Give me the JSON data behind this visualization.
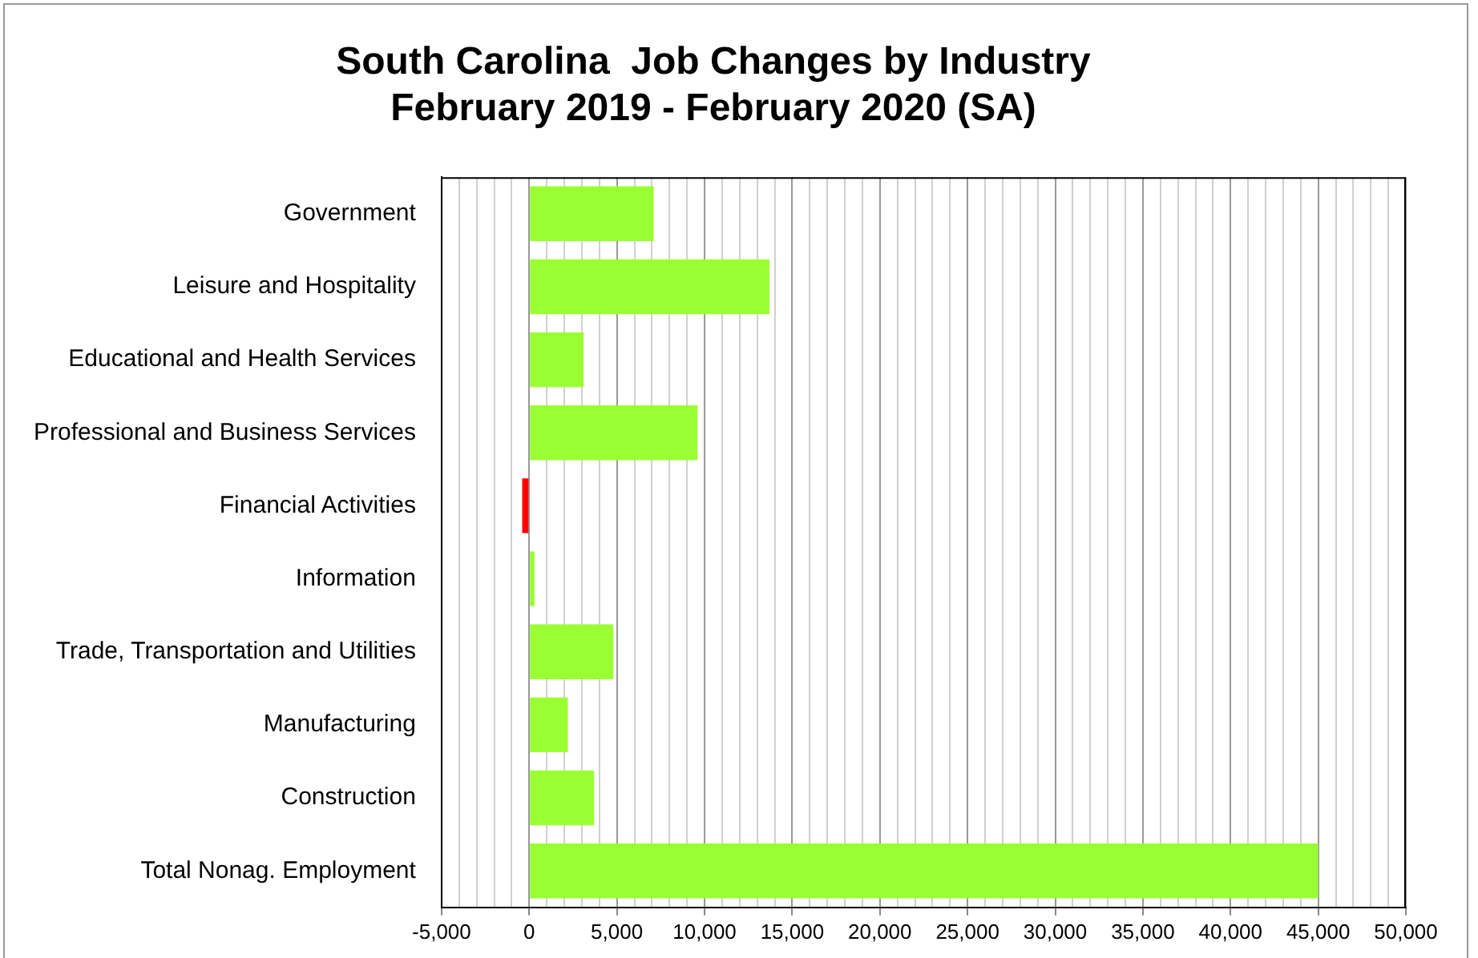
{
  "chart_data": {
    "type": "bar",
    "orientation": "horizontal",
    "title": "South Carolina  Job Changes by Industry\nFebruary 2019 - February 2020 (SA)",
    "categories": [
      "Government",
      "Leisure and Hospitality",
      "Educational and Health Services",
      "Professional and Business Services",
      "Financial Activities",
      "Information",
      "Trade, Transportation and Utilities",
      "Manufacturing",
      "Construction",
      "Total Nonag. Employment"
    ],
    "values": [
      7100,
      13700,
      3100,
      9600,
      -400,
      300,
      4800,
      2200,
      3700,
      45000
    ],
    "colors": [
      "#99ff33",
      "#99ff33",
      "#99ff33",
      "#99ff33",
      "#ff0000",
      "#99ff33",
      "#99ff33",
      "#99ff33",
      "#99ff33",
      "#99ff33"
    ],
    "xlim": [
      -5000,
      50000
    ],
    "xticks": [
      {
        "value": -5000,
        "label": "-5,000"
      },
      {
        "value": -4000,
        "label": null
      },
      {
        "value": -3000,
        "label": null
      },
      {
        "value": -2000,
        "label": null
      },
      {
        "value": -1000,
        "label": null
      },
      0,
      {
        "value": 1000,
        "label": null
      },
      {
        "value": 2000,
        "label": null
      },
      {
        "value": 3000,
        "label": null
      },
      {
        "value": 4000,
        "label": null
      },
      {
        "value": 5000,
        "label": "5,000"
      },
      {
        "value": 6000,
        "label": null
      },
      {
        "value": 7000,
        "label": null
      },
      {
        "value": 8000,
        "label": null
      },
      {
        "value": 9000,
        "label": null
      },
      {
        "value": 10000,
        "label": "10,000"
      },
      {
        "value": 11000,
        "label": null
      },
      {
        "value": 12000,
        "label": null
      },
      {
        "value": 13000,
        "label": null
      },
      {
        "value": 14000,
        "label": null
      },
      {
        "value": 15000,
        "label": "15,000"
      },
      {
        "value": 16000,
        "label": null
      },
      {
        "value": 17000,
        "label": null
      },
      {
        "value": 18000,
        "label": null
      },
      {
        "value": 19000,
        "label": null
      },
      {
        "value": 20000,
        "label": "20,000"
      },
      {
        "value": 21000,
        "label": null
      },
      {
        "value": 22000,
        "label": null
      },
      {
        "value": 23000,
        "label": null
      },
      {
        "value": 24000,
        "label": null
      },
      {
        "value": 25000,
        "label": "25,000"
      },
      {
        "value": 26000,
        "label": null
      },
      {
        "value": 27000,
        "label": null
      },
      {
        "value": 28000,
        "label": null
      },
      {
        "value": 29000,
        "label": null
      },
      {
        "value": 30000,
        "label": "30,000"
      },
      {
        "value": 31000,
        "label": null
      },
      {
        "value": 32000,
        "label": null
      },
      {
        "value": 33000,
        "label": null
      },
      {
        "value": 34000,
        "label": null
      },
      {
        "value": 35000,
        "label": "35,000"
      },
      {
        "value": 36000,
        "label": null
      },
      {
        "value": 37000,
        "label": null
      },
      {
        "value": 38000,
        "label": null
      },
      {
        "value": 39000,
        "label": null
      },
      {
        "value": 40000,
        "label": "40,000"
      },
      {
        "value": 41000,
        "label": null
      },
      {
        "value": 42000,
        "label": null
      },
      {
        "value": 43000,
        "label": null
      },
      {
        "value": 44000,
        "label": null
      },
      {
        "value": 45000,
        "label": "45,000"
      },
      {
        "value": 46000,
        "label": null
      },
      {
        "value": 47000,
        "label": null
      },
      {
        "value": 48000,
        "label": null
      },
      {
        "value": 49000,
        "label": null
      },
      {
        "value": 50000,
        "label": "50,000"
      }
    ],
    "grid": "x",
    "legend": false
  }
}
